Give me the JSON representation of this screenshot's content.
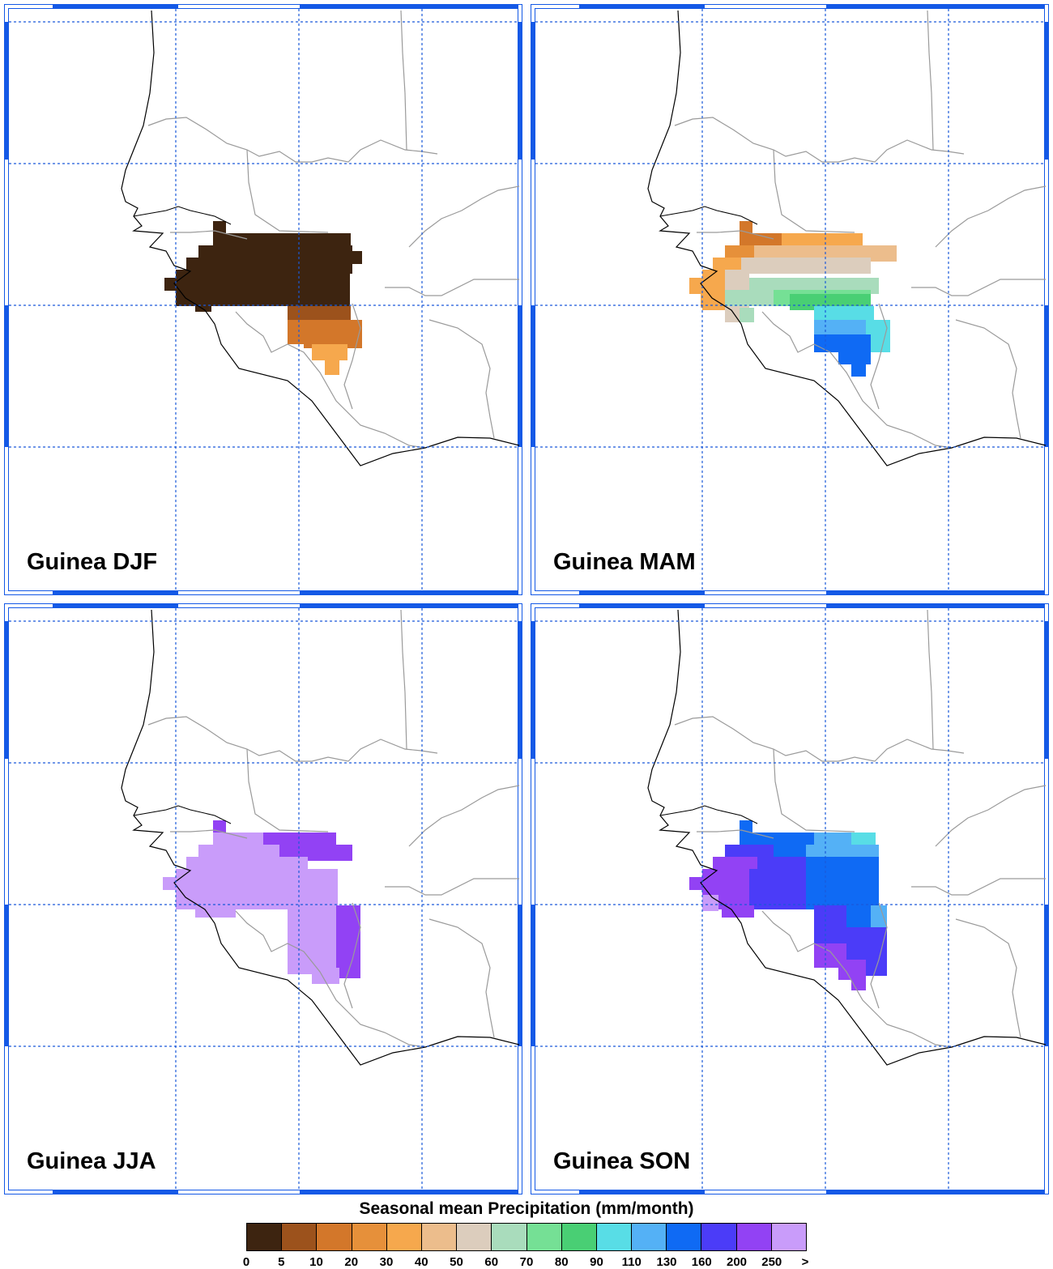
{
  "panels": [
    {
      "label": "Guinea DJF"
    },
    {
      "label": "Guinea MAM"
    },
    {
      "label": "Guinea JJA"
    },
    {
      "label": "Guinea SON"
    }
  ],
  "colorbar": {
    "title": "Seasonal mean Precipitation (mm/month)",
    "labels": [
      "0",
      "5",
      "10",
      "20",
      "30",
      "40",
      "50",
      "60",
      "70",
      "80",
      "90",
      "110",
      "130",
      "160",
      "200",
      "250",
      ">"
    ],
    "colors": [
      "#3d2410",
      "#9c521c",
      "#d3772a",
      "#e6903a",
      "#f6a84d",
      "#ecbd8c",
      "#dccdbd",
      "#a9dcbc",
      "#75e095",
      "#49cf74",
      "#58dde6",
      "#54b1f6",
      "#0f6af4",
      "#4b3cf8",
      "#9242f4",
      "#c99cfa"
    ]
  },
  "map_style": {
    "gridline_color": "#1a59d9",
    "frame_color": "#1459e6",
    "coast_color": "#000000",
    "border_color": "#9a9a9a"
  }
}
